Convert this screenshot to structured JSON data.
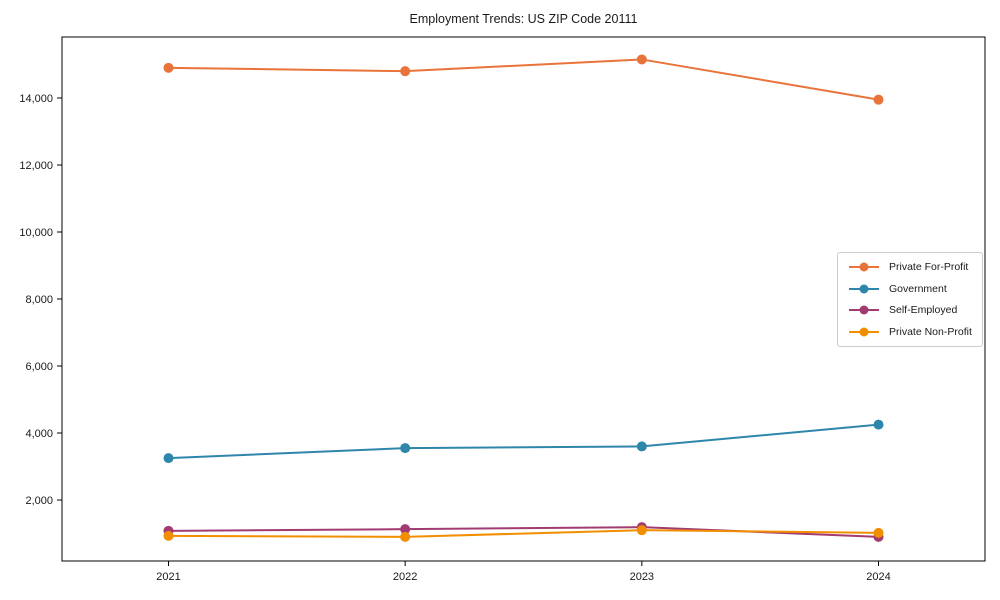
{
  "figure": {
    "background": "#ffffff",
    "axis_color": "#000000",
    "text_color": "#1a1a1a",
    "legend_border_color": "#cccccc"
  },
  "chart_data": {
    "type": "line",
    "title": "Employment Trends: US ZIP Code 20111",
    "xlabel": "",
    "ylabel": "",
    "x_categories": [
      "2021",
      "2022",
      "2023",
      "2024"
    ],
    "series": [
      {
        "name": "Private For-Profit",
        "color": "#E8743B",
        "values": [
          14900,
          14800,
          15150,
          13950
        ]
      },
      {
        "name": "Government",
        "color": "#2E86AB",
        "values": [
          3250,
          3550,
          3600,
          4250
        ]
      },
      {
        "name": "Self-Employed",
        "color": "#A23B72",
        "values": [
          1080,
          1130,
          1190,
          900
        ]
      },
      {
        "name": "Private Non-Profit",
        "color": "#F18F01",
        "values": [
          930,
          900,
          1100,
          1020
        ]
      }
    ],
    "ylim": [
      180,
      15820
    ],
    "yticks": [
      2000,
      4000,
      6000,
      8000,
      10000,
      12000,
      14000
    ],
    "grid": false,
    "legend": {
      "position": "right",
      "labels": [
        "Private For-Profit",
        "Government",
        "Self-Employed",
        "Private Non-Profit"
      ]
    }
  }
}
